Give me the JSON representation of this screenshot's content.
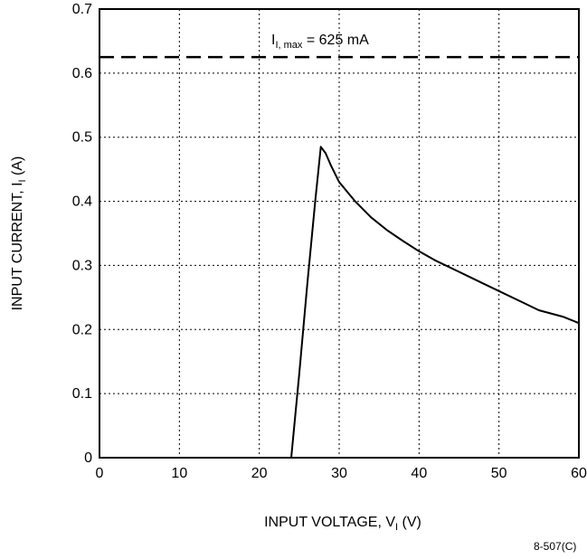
{
  "chart_data": {
    "type": "line",
    "xlabel": {
      "main": "INPUT VOLTAGE, V",
      "sub": "I",
      "unit": " (V)"
    },
    "ylabel": {
      "main": "INPUT CURRENT, I",
      "sub": "I",
      "unit": " (A)"
    },
    "xlim": [
      0,
      60
    ],
    "ylim": [
      0,
      0.7
    ],
    "x_ticks": [
      "0",
      "10",
      "20",
      "30",
      "40",
      "50",
      "60"
    ],
    "y_ticks": [
      "0",
      "0.1",
      "0.2",
      "0.3",
      "0.4",
      "0.5",
      "0.6",
      "0.7"
    ],
    "grid": true,
    "grid_style": "dotted",
    "reference_line": {
      "y": 0.625,
      "style": "dashed",
      "label": {
        "main": "I",
        "sub": "I, max",
        "rest": " = 625 mA"
      }
    },
    "series": [
      {
        "color": "#000000",
        "points": [
          [
            24.0,
            0.0
          ],
          [
            25.0,
            0.13
          ],
          [
            26.0,
            0.27
          ],
          [
            27.0,
            0.4
          ],
          [
            27.7,
            0.485
          ],
          [
            28.3,
            0.475
          ],
          [
            29.0,
            0.455
          ],
          [
            30.0,
            0.43
          ],
          [
            32.0,
            0.4
          ],
          [
            34.0,
            0.375
          ],
          [
            36.0,
            0.355
          ],
          [
            38.0,
            0.338
          ],
          [
            40.0,
            0.322
          ],
          [
            42.0,
            0.308
          ],
          [
            45.0,
            0.29
          ],
          [
            48.0,
            0.272
          ],
          [
            50.0,
            0.26
          ],
          [
            53.0,
            0.242
          ],
          [
            55.0,
            0.23
          ],
          [
            58.0,
            0.22
          ],
          [
            60.0,
            0.21
          ]
        ]
      }
    ]
  },
  "figure_id": "8-507(C)"
}
